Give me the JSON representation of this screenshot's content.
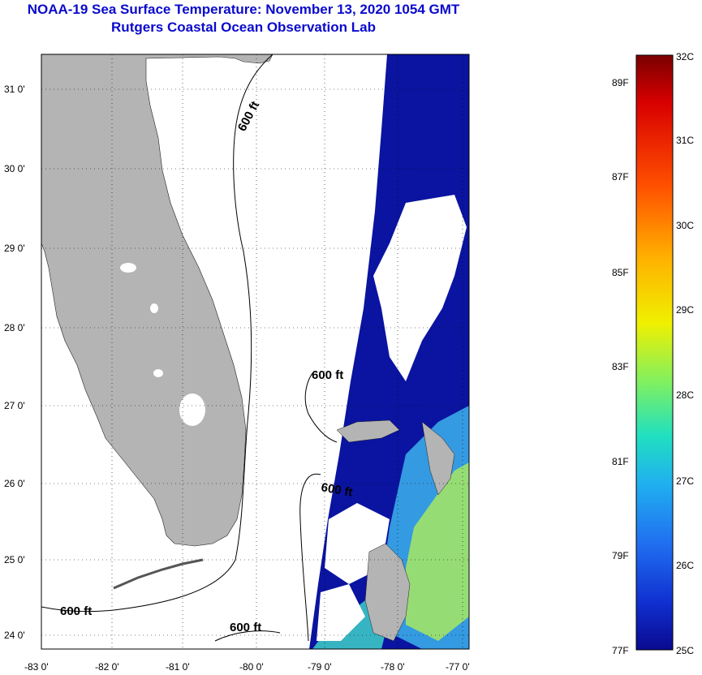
{
  "title": {
    "line1": "NOAA-19 Sea Surface Temperature:  November 13, 2020 1054 GMT",
    "line2": "Rutgers Coastal Ocean Observation Lab"
  },
  "map": {
    "lat_labels": [
      "31 0'",
      "30 0'",
      "29 0'",
      "28 0'",
      "27 0'",
      "26 0'",
      "25 0'",
      "24 0'"
    ],
    "lon_labels": [
      "-83 0'",
      "-82 0'",
      "-81 0'",
      "-80 0'",
      "-79 0'",
      "-78 0'",
      "-77 0'"
    ],
    "contour_label": "600 ft",
    "colors": {
      "land": "#b4b4b4",
      "ocean_cold": "#0a14a0",
      "cloud": "#ffffff"
    }
  },
  "colorbar": {
    "celsius": [
      "32C",
      "31C",
      "30C",
      "29C",
      "28C",
      "27C",
      "26C",
      "25C"
    ],
    "fahrenheit": [
      "89F",
      "87F",
      "85F",
      "83F",
      "81F",
      "79F",
      "77F"
    ],
    "stops": [
      "#7a0000",
      "#d80000",
      "#ff5000",
      "#ffb000",
      "#f0f000",
      "#80f060",
      "#20e0c0",
      "#20b0f0",
      "#2070f0",
      "#1030d0",
      "#0a0a90"
    ]
  }
}
